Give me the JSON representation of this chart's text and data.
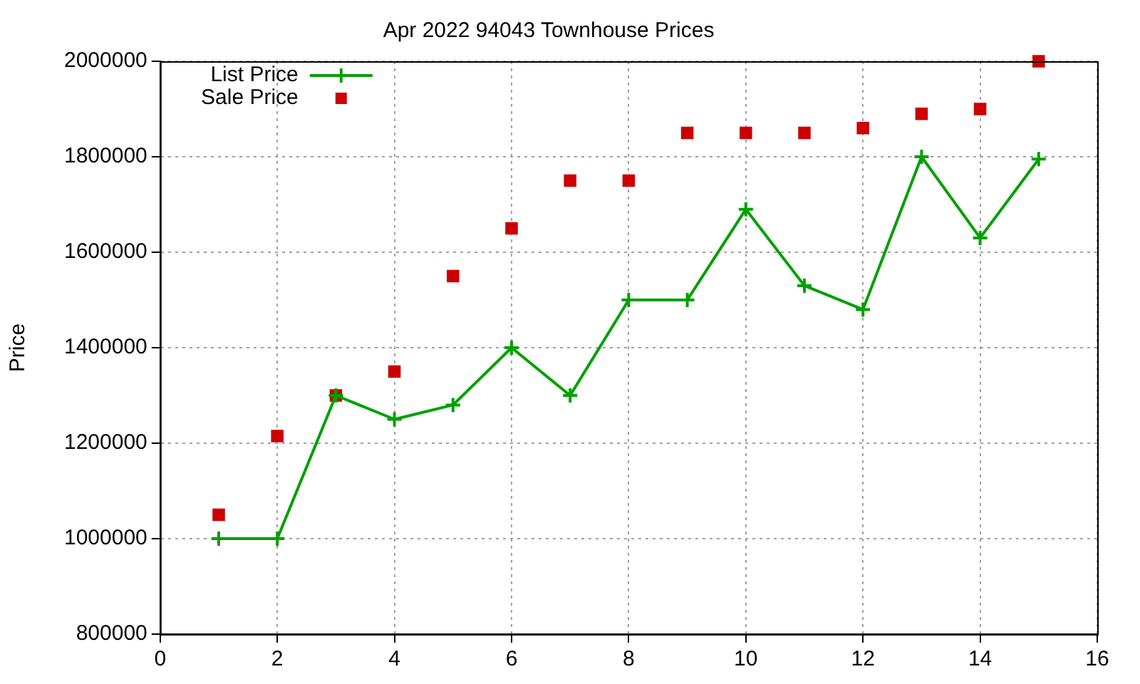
{
  "chart_data": {
    "type": "line",
    "title": "Apr 2022 94043 Townhouse Prices",
    "ylabel": "Price",
    "x": [
      1,
      2,
      3,
      4,
      5,
      6,
      7,
      8,
      9,
      10,
      11,
      12,
      13,
      14,
      15
    ],
    "series": [
      {
        "name": "List Price",
        "color": "#00a000",
        "marker": "cross",
        "values": [
          1000000,
          1000000,
          1300000,
          1250000,
          1280000,
          1400000,
          1300000,
          1500000,
          1500000,
          1690000,
          1530000,
          1480000,
          1800000,
          1630000,
          1795000
        ]
      },
      {
        "name": "Sale Price",
        "type": "scatter",
        "color": "#cc0000",
        "marker": "square",
        "values": [
          1050000,
          1215000,
          1300000,
          1350000,
          1550000,
          1650000,
          1750000,
          1750000,
          1850000,
          1850000,
          1850000,
          1860000,
          1890000,
          1900000,
          2000000
        ]
      }
    ],
    "xlim": [
      0,
      16
    ],
    "xticks": [
      0,
      2,
      4,
      6,
      8,
      10,
      12,
      14,
      16
    ],
    "ylim": [
      800000,
      2000000
    ],
    "yticks": [
      800000,
      1000000,
      1200000,
      1400000,
      1600000,
      1800000,
      2000000
    ],
    "grid": true,
    "legend": "top left"
  }
}
